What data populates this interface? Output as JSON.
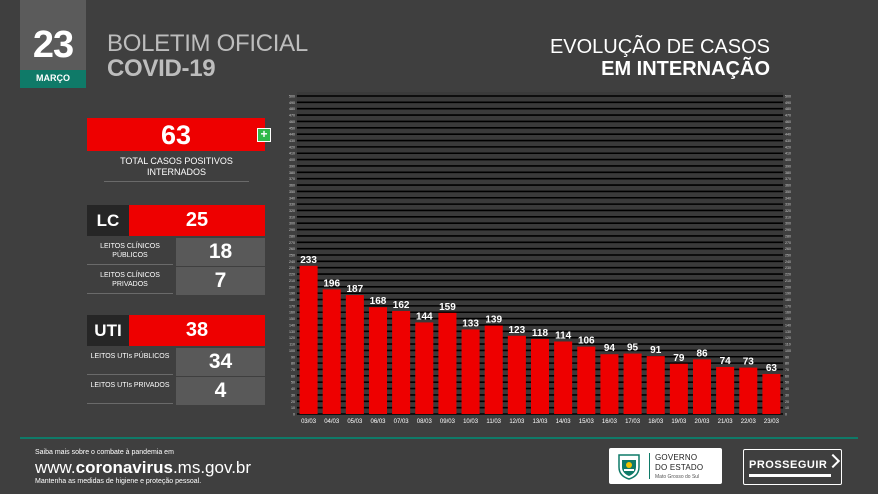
{
  "date": {
    "day": "23",
    "month": "MARÇO"
  },
  "header": {
    "title_line1": "BOLETIM OFICIAL",
    "title_line2": "COVID-19"
  },
  "summary": {
    "total_value": "63",
    "total_label": "TOTAL CASOS POSITIVOS INTERNADOS",
    "lc": {
      "code": "LC",
      "total": "25",
      "public_label": "LEITOS CLÍNICOS PÚBLICOS",
      "public_value": "18",
      "private_label": "LEITOS CLÍNICOS PRIVADOS",
      "private_value": "7"
    },
    "uti": {
      "code": "UTI",
      "total": "38",
      "public_label": "LEITOS UTIs PÚBLICOS",
      "public_value": "34",
      "private_label": "LEITOS UTIs PRIVADOS",
      "private_value": "4"
    }
  },
  "colors": {
    "background": "#3f3f3f",
    "accent_red": "#ee0000",
    "accent_green": "#0f7a68",
    "gridline": "#000000",
    "plus_green": "#30b84a"
  },
  "chart_data": {
    "type": "bar",
    "title": "EVOLUÇÃO DE CASOS",
    "subtitle": "EM INTERNAÇÃO",
    "categories": [
      "03/03",
      "04/03",
      "05/03",
      "06/03",
      "07/03",
      "08/03",
      "09/03",
      "10/03",
      "11/03",
      "12/03",
      "13/03",
      "14/03",
      "15/03",
      "16/03",
      "17/03",
      "18/03",
      "19/03",
      "20/03",
      "21/03",
      "22/03",
      "23/03"
    ],
    "values": [
      233,
      196,
      187,
      168,
      162,
      144,
      159,
      133,
      139,
      123,
      118,
      114,
      106,
      94,
      95,
      91,
      79,
      86,
      74,
      73,
      63
    ],
    "ylim": [
      0,
      500
    ],
    "ytick_step": 10,
    "grid": true,
    "bar_color": "#ee0000",
    "xlabel": "",
    "ylabel": ""
  },
  "footer": {
    "info_line1": "Saiba mais sobre o combate à pandemia em",
    "site_prefix": "www.",
    "site_bold": "coronavirus",
    "site_suffix": ".ms.gov.br",
    "info_line2": "Mantenha as medidas de higiene e proteção pessoal.",
    "gov_line1": "GOVERNO",
    "gov_line2": "DO ESTADO",
    "gov_line3": "Mato Grosso do Sul",
    "prosseguir": "PROSSEGUIR"
  }
}
